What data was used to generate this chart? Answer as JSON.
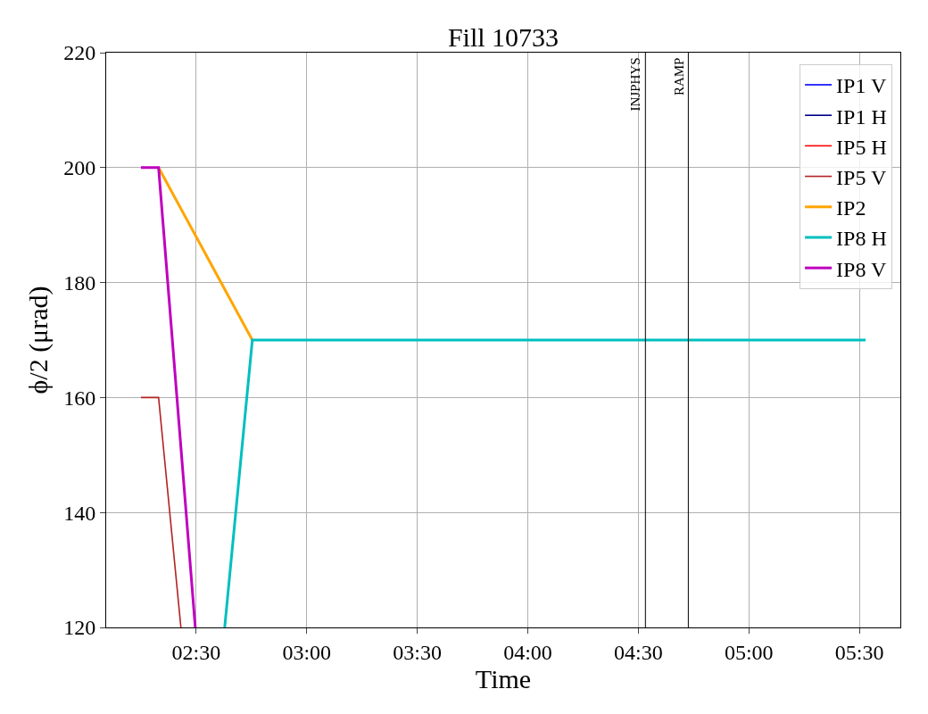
{
  "chart_data": {
    "type": "line",
    "title": "Fill 10733",
    "xlabel": "Time",
    "ylabel": "ϕ/2 (μrad)",
    "series": [
      {
        "name": "IP1 V",
        "color": "#0000ff"
      },
      {
        "name": "IP1 H",
        "color": "#00008b"
      },
      {
        "name": "IP5 H",
        "color": "#ff0000"
      },
      {
        "name": "IP5 V",
        "color": "#b22222",
        "x": [
          2.25,
          2.33,
          2.431
        ],
        "values": [
          160,
          160,
          120
        ]
      },
      {
        "name": "IP2",
        "color": "#ffa500",
        "x": [
          2.33,
          2.754
        ],
        "values": [
          200,
          170
        ]
      },
      {
        "name": "IP8 H",
        "color": "#00bfbf",
        "x": [
          2.629,
          2.754,
          5.528
        ],
        "values": [
          120,
          170,
          170
        ]
      },
      {
        "name": "IP8 V",
        "color": "#bf00bf",
        "x": [
          2.25,
          2.33,
          2.496
        ],
        "values": [
          200,
          200,
          120
        ]
      }
    ],
    "xlim": [
      2.093,
      5.685
    ],
    "xticks": [
      {
        "value": 2.5,
        "label": "02:30"
      },
      {
        "value": 3.0,
        "label": "03:00"
      },
      {
        "value": 3.5,
        "label": "03:30"
      },
      {
        "value": 4.0,
        "label": "04:00"
      },
      {
        "value": 4.5,
        "label": "04:30"
      },
      {
        "value": 5.0,
        "label": "05:00"
      },
      {
        "value": 5.5,
        "label": "05:30"
      }
    ],
    "ylim": [
      120,
      220
    ],
    "yticks": [
      120,
      140,
      160,
      180,
      200,
      220
    ],
    "ref_lines": [
      {
        "axis": "x",
        "value": 4.532,
        "label": "INJPHYS",
        "color": "#000000"
      },
      {
        "axis": "x",
        "value": 4.726,
        "label": "RAMP",
        "color": "#000000"
      }
    ],
    "grid": true,
    "legend": "top right",
    "marker": "none",
    "line_style": "solid"
  }
}
